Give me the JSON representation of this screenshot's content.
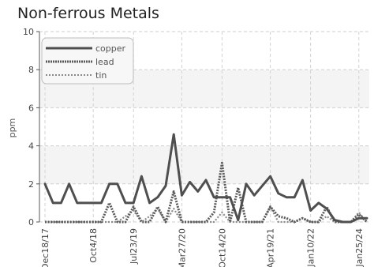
{
  "chart_data": {
    "type": "line",
    "title": "Non-ferrous Metals",
    "ylabel": "ppm",
    "xlabel": "",
    "ylim": [
      0,
      10
    ],
    "y_ticks": [
      "0",
      "2",
      "4",
      "6",
      "8",
      "10"
    ],
    "grid": true,
    "legend_position": "top-left",
    "x_tick_labels": [
      "Dec18/17",
      "Oct4/18",
      "Jul23/19",
      "Mar27/20",
      "Oct14/20",
      "Apr19/21",
      "Jan10/22",
      "Jan25/24"
    ],
    "x_tick_index": [
      0,
      6,
      11,
      17,
      22,
      28,
      33,
      39
    ],
    "series": [
      {
        "name": "copper",
        "color": "#4f4f4f",
        "style": "solid",
        "values": [
          2.0,
          1.0,
          1.0,
          2.0,
          1.0,
          1.0,
          1.0,
          1.0,
          2.0,
          2.0,
          1.0,
          1.0,
          2.4,
          1.0,
          1.3,
          1.9,
          4.6,
          1.4,
          2.1,
          1.6,
          2.2,
          1.3,
          1.3,
          1.3,
          0.1,
          2.0,
          1.4,
          1.9,
          2.4,
          1.5,
          1.3,
          1.3,
          2.2,
          0.6,
          1.0,
          0.7,
          0.1,
          0.0,
          0.0,
          0.2,
          0.2
        ]
      },
      {
        "name": "lead",
        "color": "#5a5a5a",
        "style": "dotted",
        "values": [
          0.0,
          0.0,
          0.0,
          0.0,
          0.0,
          0.0,
          0.0,
          0.0,
          1.0,
          0.0,
          0.0,
          0.8,
          0.0,
          0.0,
          0.8,
          0.0,
          1.6,
          0.0,
          0.0,
          0.0,
          0.0,
          0.5,
          3.1,
          0.0,
          1.8,
          0.0,
          0.0,
          0.0,
          0.8,
          0.3,
          0.2,
          0.0,
          0.2,
          0.0,
          0.0,
          0.8,
          0.0,
          0.0,
          0.0,
          0.4,
          0.0
        ]
      },
      {
        "name": "tin",
        "color": "#8a8a8a",
        "style": "dashed",
        "values": [
          0.0,
          0.0,
          0.0,
          0.0,
          0.0,
          0.0,
          0.0,
          0.0,
          0.0,
          0.0,
          0.3,
          0.6,
          0.0,
          0.3,
          0.7,
          0.0,
          0.7,
          0.0,
          0.0,
          0.0,
          0.0,
          0.0,
          0.5,
          0.0,
          0.0,
          0.0,
          0.0,
          0.0,
          0.8,
          0.0,
          0.0,
          0.0,
          0.2,
          0.0,
          0.0,
          0.3,
          0.0,
          0.0,
          0.0,
          0.5,
          0.0
        ]
      }
    ]
  }
}
